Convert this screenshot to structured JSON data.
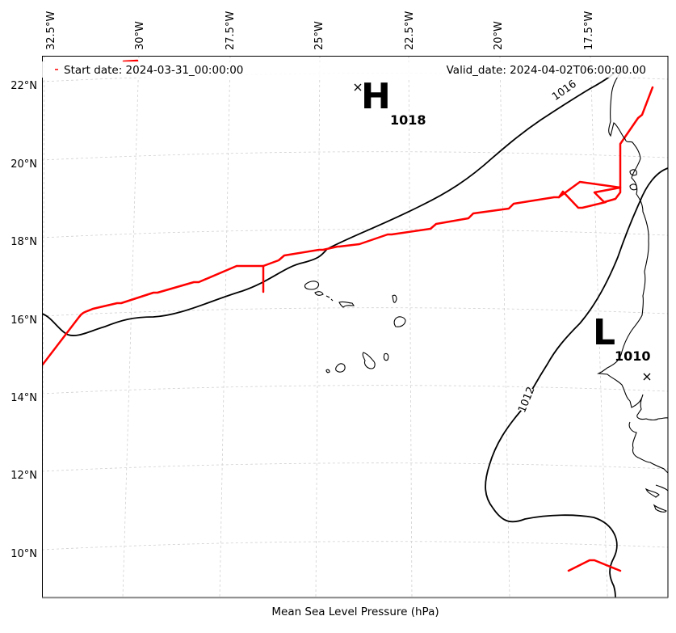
{
  "map": {
    "start_label": "Start date: 2024-03-31_00:00:00",
    "valid_label": "Valid_date: 2024-04-02T06:00:00.00",
    "caption": "Mean Sea Level Pressure (hPa)",
    "lon_labels": [
      "32.5°W",
      "30°W",
      "27.5°W",
      "25°W",
      "22.5°W",
      "20°W",
      "17.5°W"
    ],
    "lat_labels": [
      "22°N",
      "20°N",
      "18°N",
      "16°N",
      "14°N",
      "12°N",
      "10°N"
    ],
    "high": {
      "letter": "H",
      "value": "1018"
    },
    "low": {
      "letter": "L",
      "value": "1010"
    },
    "isobars": [
      {
        "value": "1016",
        "label": "1016"
      },
      {
        "value": "1012",
        "label": "1012"
      }
    ],
    "colors": {
      "track": "#ff0000",
      "isobar": "#000000",
      "grid": "#cccccc",
      "coast": "#000000"
    }
  }
}
